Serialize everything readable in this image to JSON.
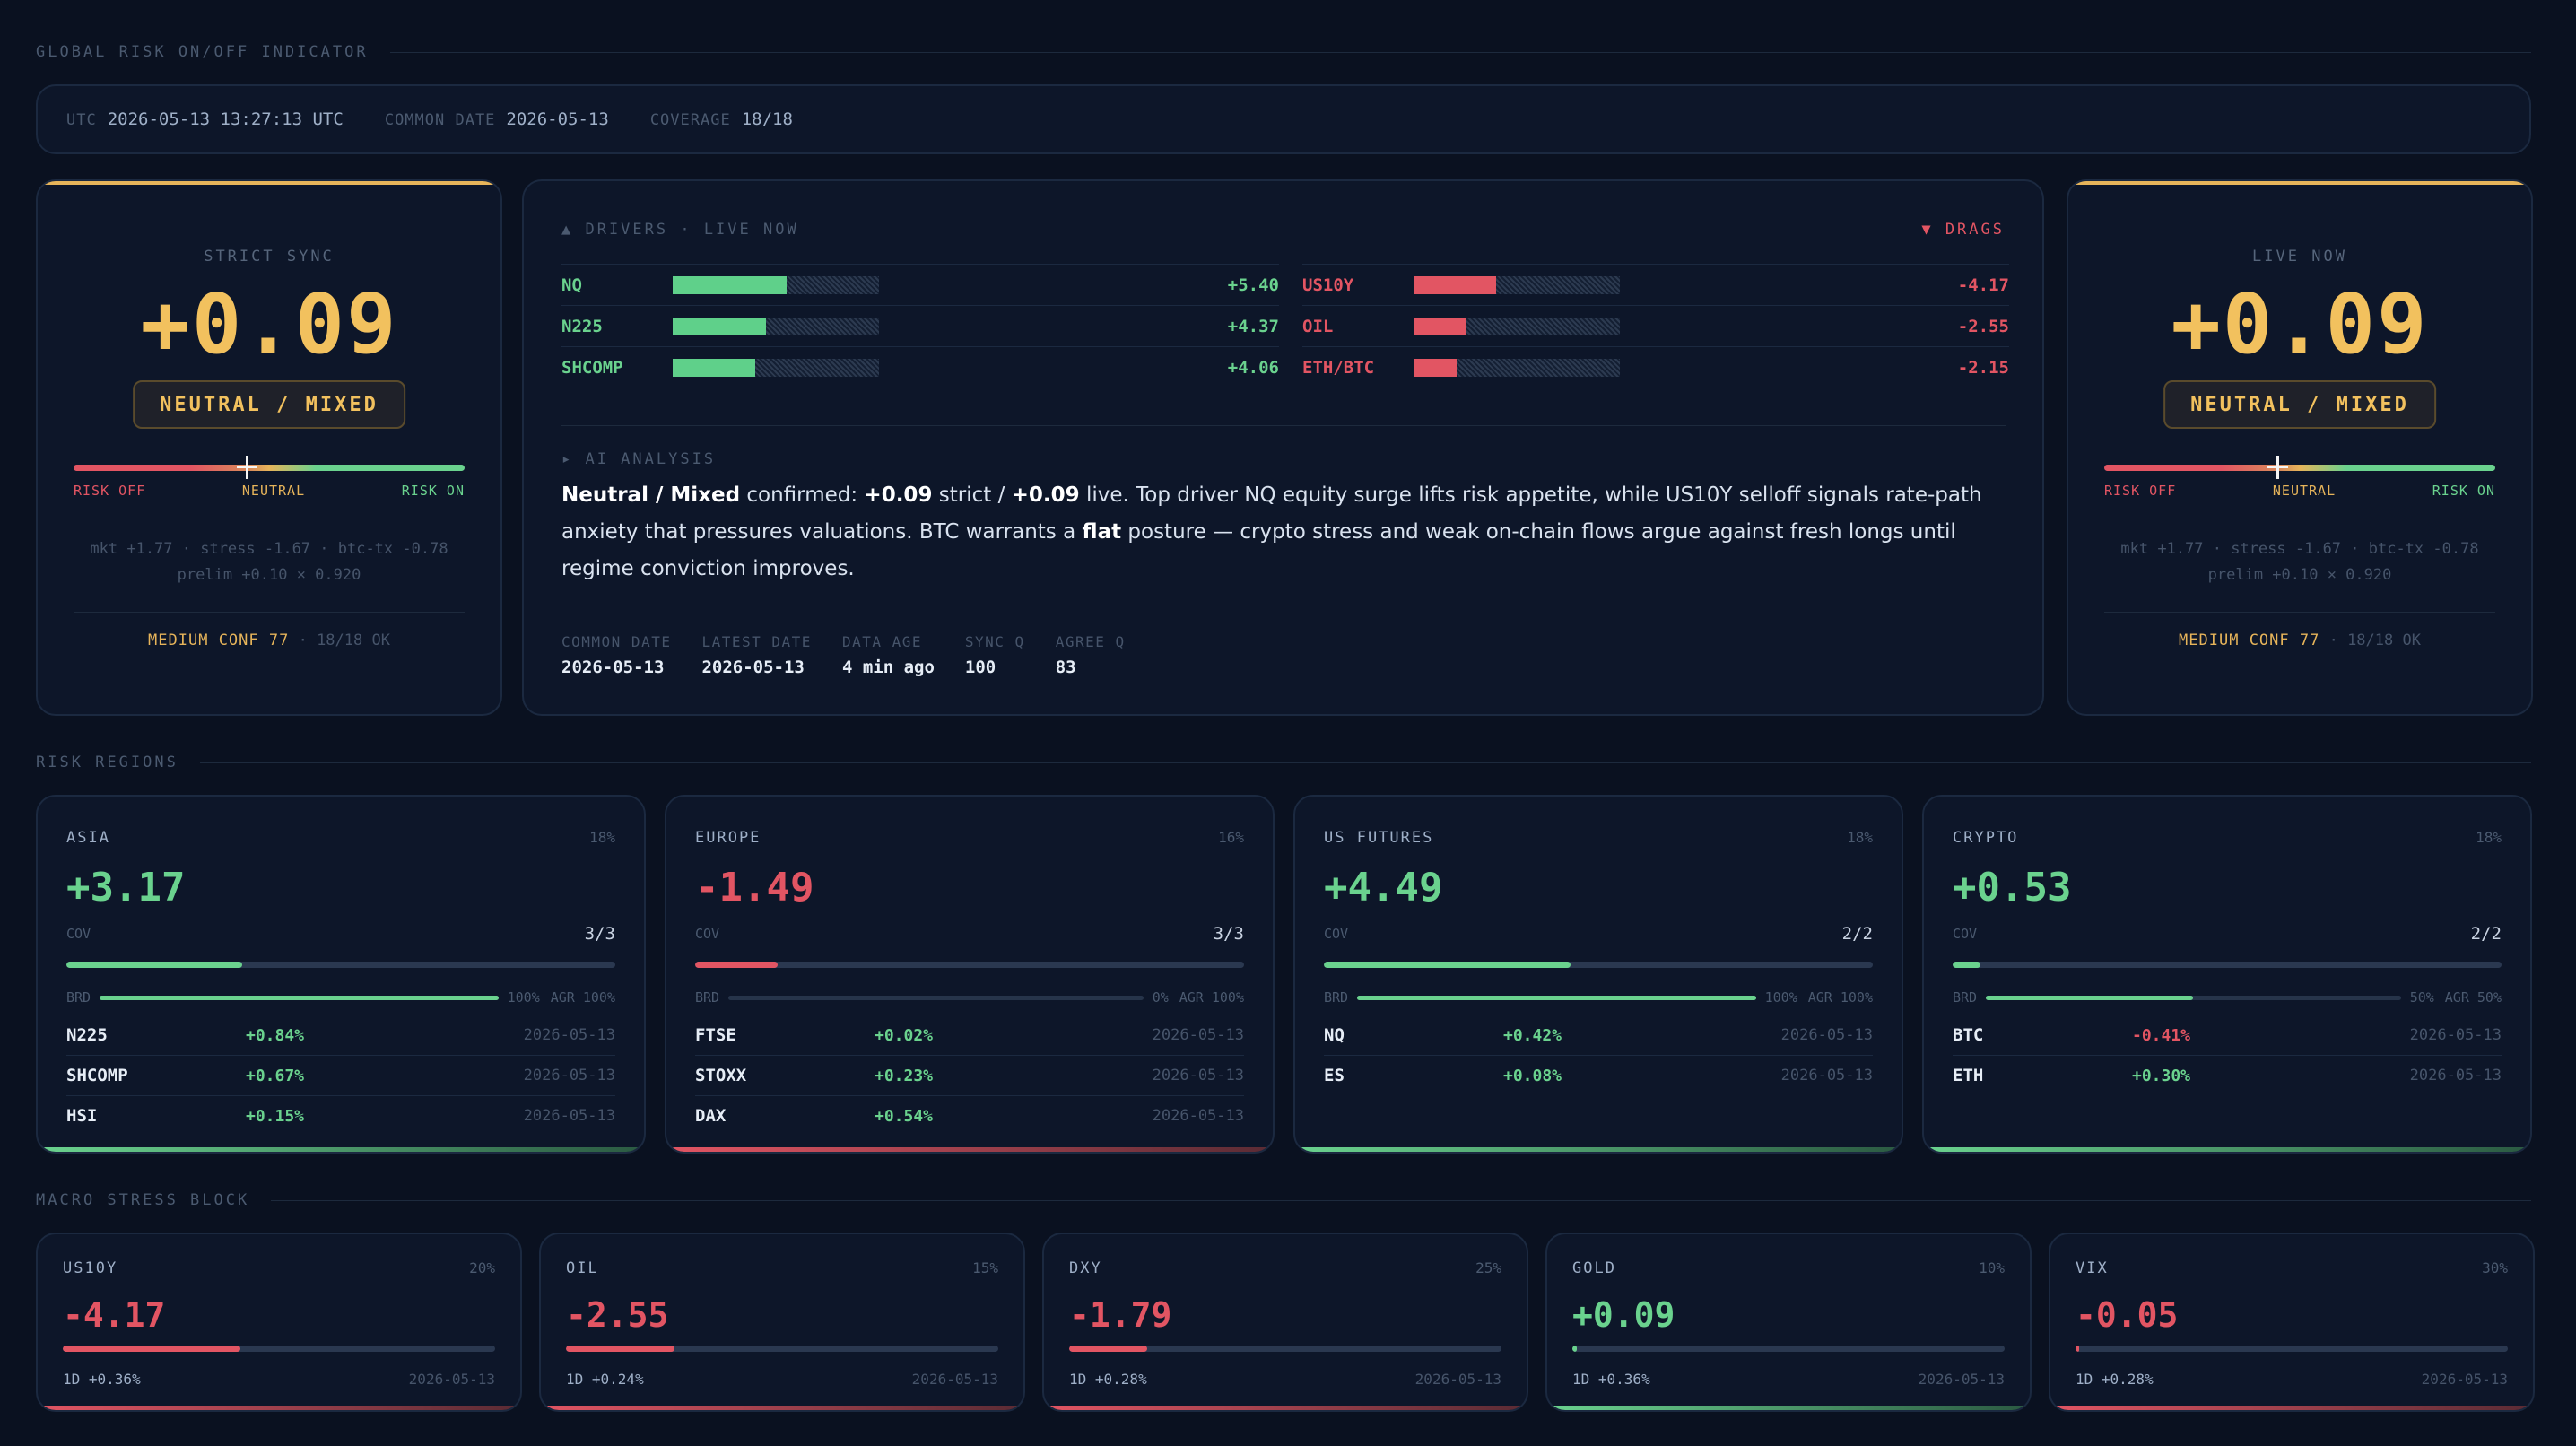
{
  "header": {
    "title": "GLOBAL RISK ON/OFF INDICATOR"
  },
  "status": {
    "utc_label": "UTC",
    "utc_value": "2026-05-13 13:27:13 UTC",
    "common_label": "COMMON DATE",
    "common_value": "2026-05-13",
    "coverage_label": "COVERAGE",
    "coverage_value": "18/18"
  },
  "strict": {
    "label": "STRICT SYNC",
    "value": "+0.09",
    "regime": "NEUTRAL / MIXED",
    "scale_off": "RISK OFF",
    "scale_neutral": "NEUTRAL",
    "scale_on": "RISK ON",
    "gauge_level": 0.09,
    "sub1": "mkt +1.77 · stress -1.67 · btc-tx -0.78",
    "sub2": "prelim +0.10 × 0.920",
    "conf": "MEDIUM CONF 77",
    "ok": "· 18/18 OK"
  },
  "live": {
    "label": "LIVE NOW",
    "value": "+0.09",
    "regime": "NEUTRAL / MIXED",
    "scale_off": "RISK OFF",
    "scale_neutral": "NEUTRAL",
    "scale_on": "RISK ON",
    "gauge_level": 0.09,
    "sub1": "mkt +1.77 · stress -1.67 · btc-tx -0.78",
    "sub2": "prelim +0.10 × 0.920",
    "conf": "MEDIUM CONF 77",
    "ok": "· 18/18 OK"
  },
  "drivers": {
    "label": "▲ DRIVERS · LIVE NOW",
    "items": [
      {
        "name": "NQ",
        "value": "+5.40",
        "strength": 0.55
      },
      {
        "name": "N225",
        "value": "+4.37",
        "strength": 0.45
      },
      {
        "name": "SHCOMP",
        "value": "+4.06",
        "strength": 0.4
      }
    ]
  },
  "drags": {
    "label": "▼ DRAGS",
    "items": [
      {
        "name": "US10Y",
        "value": "-4.17",
        "strength": 0.4
      },
      {
        "name": "OIL",
        "value": "-2.55",
        "strength": 0.25
      },
      {
        "name": "ETH/BTC",
        "value": "-2.15",
        "strength": 0.21
      }
    ]
  },
  "ai": {
    "label": "▸ AI ANALYSIS",
    "b1": "Neutral / Mixed",
    "t1": " confirmed: ",
    "b2": "+0.09",
    "t2": " strict / ",
    "b3": "+0.09",
    "t3": " live. Top driver NQ equity surge lifts risk appetite, while US10Y selloff signals rate-path anxiety that pressures valuations. BTC warrants a ",
    "b4": "flat",
    "t4": " posture — crypto stress and weak on-chain flows argue against fresh longs until regime conviction improves."
  },
  "meta": [
    {
      "label": "COMMON DATE",
      "value": "2026-05-13"
    },
    {
      "label": "LATEST DATE",
      "value": "2026-05-13"
    },
    {
      "label": "DATA AGE",
      "value": "4 min ago"
    },
    {
      "label": "SYNC Q",
      "value": "100"
    },
    {
      "label": "AGREE Q",
      "value": "83"
    }
  ],
  "regions_title": "RISK REGIONS",
  "regions": [
    {
      "name": "ASIA",
      "weight": "18%",
      "value": "+3.17",
      "cov_label": "COV",
      "cov": "3/3",
      "cov_level": 0.32,
      "brd_label": "BRD",
      "brd_pct": "100%",
      "brd_level": 1.0,
      "agr": "AGR 100%",
      "rows": [
        {
          "sym": "N225",
          "chg": "+0.84%",
          "date": "2026-05-13"
        },
        {
          "sym": "SHCOMP",
          "chg": "+0.67%",
          "date": "2026-05-13"
        },
        {
          "sym": "HSI",
          "chg": "+0.15%",
          "date": "2026-05-13"
        }
      ]
    },
    {
      "name": "EUROPE",
      "weight": "16%",
      "value": "-1.49",
      "cov_label": "COV",
      "cov": "3/3",
      "cov_level": 0.15,
      "brd_label": "BRD",
      "brd_pct": "0%",
      "brd_level": 0.0,
      "agr": "AGR 100%",
      "rows": [
        {
          "sym": "FTSE",
          "chg": "+0.02%",
          "date": "2026-05-13"
        },
        {
          "sym": "STOXX",
          "chg": "+0.23%",
          "date": "2026-05-13"
        },
        {
          "sym": "DAX",
          "chg": "+0.54%",
          "date": "2026-05-13"
        }
      ]
    },
    {
      "name": "US FUTURES",
      "weight": "18%",
      "value": "+4.49",
      "cov_label": "COV",
      "cov": "2/2",
      "cov_level": 0.45,
      "brd_label": "BRD",
      "brd_pct": "100%",
      "brd_level": 1.0,
      "agr": "AGR 100%",
      "rows": [
        {
          "sym": "NQ",
          "chg": "+0.42%",
          "date": "2026-05-13"
        },
        {
          "sym": "ES",
          "chg": "+0.08%",
          "date": "2026-05-13"
        }
      ]
    },
    {
      "name": "CRYPTO",
      "weight": "18%",
      "value": "+0.53",
      "cov_label": "COV",
      "cov": "2/2",
      "cov_level": 0.05,
      "brd_label": "BRD",
      "brd_pct": "50%",
      "brd_level": 0.5,
      "agr": "AGR 50%",
      "rows": [
        {
          "sym": "BTC",
          "chg": "-0.41%",
          "date": "2026-05-13"
        },
        {
          "sym": "ETH",
          "chg": "+0.30%",
          "date": "2026-05-13"
        }
      ]
    }
  ],
  "macro_title": "MACRO STRESS BLOCK",
  "macro": [
    {
      "name": "US10Y",
      "weight": "20%",
      "value": "-4.17",
      "level": 0.41,
      "d1": "1D +0.36%",
      "date": "2026-05-13"
    },
    {
      "name": "OIL",
      "weight": "15%",
      "value": "-2.55",
      "level": 0.25,
      "d1": "1D +0.24%",
      "date": "2026-05-13"
    },
    {
      "name": "DXY",
      "weight": "25%",
      "value": "-1.79",
      "level": 0.18,
      "d1": "1D +0.28%",
      "date": "2026-05-13"
    },
    {
      "name": "GOLD",
      "weight": "10%",
      "value": "+0.09",
      "level": 0.01,
      "d1": "1D +0.36%",
      "date": "2026-05-13"
    },
    {
      "name": "VIX",
      "weight": "30%",
      "value": "-0.05",
      "level": 0.005,
      "d1": "1D +0.28%",
      "date": "2026-05-13"
    }
  ],
  "colors": {
    "positive": "#6ad28e",
    "negative": "#e25563",
    "accent": "#f2c15e"
  }
}
